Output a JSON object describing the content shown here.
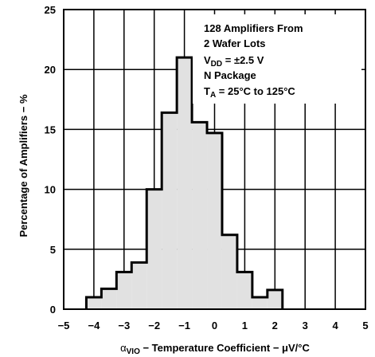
{
  "chart_data": {
    "type": "bar",
    "title": "",
    "xlabel": "αVIO − Temperature Coefficient − μV/°C",
    "xlabel_parts": {
      "alpha": "α",
      "sub": "VIO",
      "rest": " − Temperature Coefficient − μV/°C"
    },
    "ylabel": "Percentage of Amplifiers − %",
    "xlim": [
      -5,
      5
    ],
    "ylim": [
      0,
      25
    ],
    "x_ticks": [
      -5,
      -4,
      -3,
      -2,
      -1,
      0,
      1,
      2,
      3,
      4,
      5
    ],
    "x_tick_labels": [
      "−5",
      "−4",
      "−3",
      "−2",
      "−1",
      "0",
      "1",
      "2",
      "3",
      "4",
      "5"
    ],
    "y_ticks": [
      0,
      5,
      10,
      15,
      20,
      25
    ],
    "y_tick_labels": [
      "0",
      "5",
      "10",
      "15",
      "20",
      "25"
    ],
    "grid": true,
    "bin_width": 0.5,
    "bin_edges": [
      -4.25,
      -3.75,
      -3.25,
      -2.75,
      -2.25,
      -1.75,
      -1.25,
      -0.75,
      -0.25,
      0.25,
      0.75,
      1.25,
      1.75,
      2.25
    ],
    "values": [
      1.0,
      1.7,
      3.1,
      3.9,
      10.0,
      16.4,
      21.0,
      15.6,
      14.7,
      6.2,
      3.1,
      1.0,
      1.6
    ],
    "fill_color": "#e1e1e1",
    "annotation": {
      "line1": "128 Amplifiers From",
      "line2": "2 Wafer Lots",
      "line3_main": "V",
      "line3_sub": "DD",
      "line3_rest": " = ±2.5 V",
      "line4": "N Package",
      "line5_main": "T",
      "line5_sub": "A",
      "line5_rest": " = 25°C to 125°C"
    }
  }
}
